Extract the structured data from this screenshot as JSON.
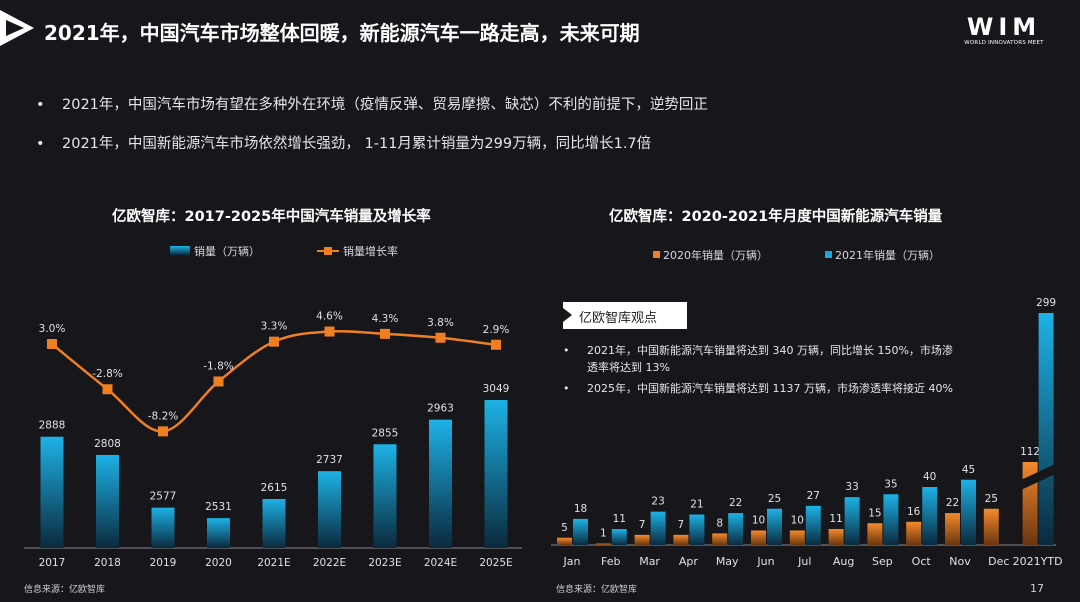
{
  "header": {
    "title": "2021年，中国汽车市场整体回暖，新能源汽车一路走高，未来可期",
    "brand_main": "WIM",
    "brand_sub": "WORLD INNOVATORS MEET"
  },
  "bullets": [
    "2021年，中国汽车市场有望在多种外在环境（疫情反弹、贸易摩擦、缺芯）不利的前提下，逆势回正",
    "2021年，中国新能源汽车市场依然增长强劲， 1-11月累计销量为299万辆，同比增长1.7倍"
  ],
  "chart_data": [
    {
      "type": "bar+line",
      "title": "亿欧智库：2017-2025年中国汽车销量及增长率",
      "categories": [
        "2017",
        "2018",
        "2019",
        "2020",
        "2021E",
        "2022E",
        "2023E",
        "2024E",
        "2025E"
      ],
      "series": [
        {
          "name": "销量（万辆）",
          "kind": "bar",
          "values": [
            2888,
            2808,
            2577,
            2531,
            2615,
            2737,
            2855,
            2963,
            3049
          ]
        },
        {
          "name": "销量增长率",
          "kind": "line",
          "values": [
            3.0,
            -2.8,
            -8.2,
            -1.8,
            3.3,
            4.6,
            4.3,
            3.8,
            2.9
          ],
          "labels": [
            "3.0%",
            "-2.8%",
            "-8.2%",
            "-1.8%",
            "3.3%",
            "4.6%",
            "4.3%",
            "3.8%",
            "2.9%"
          ]
        }
      ],
      "legend": "top",
      "colors": {
        "bar": "#1aa7db",
        "line": "#f07f22"
      }
    },
    {
      "type": "bar",
      "title": "亿欧智库：2020-2021年月度中国新能源汽车销量",
      "categories": [
        "Jan",
        "Feb",
        "Mar",
        "Apr",
        "May",
        "Jun",
        "Jul",
        "Aug",
        "Sep",
        "Oct",
        "Nov",
        "Dec",
        "2021YTD"
      ],
      "series": [
        {
          "name": "2020年销量（万辆）",
          "values": [
            5,
            1,
            7,
            7,
            8,
            10,
            10,
            11,
            15,
            16,
            22,
            25,
            112
          ]
        },
        {
          "name": "2021年销量（万辆）",
          "values": [
            18,
            11,
            23,
            21,
            22,
            25,
            27,
            33,
            35,
            40,
            45,
            null,
            299
          ]
        }
      ],
      "axis_break": "2021YTD",
      "legend": "top",
      "colors": {
        "s2020": "#f07f22",
        "s2021": "#1aa7db"
      }
    }
  ],
  "insight": {
    "label": "亿欧智库观点",
    "items": [
      "2021年，中国新能源汽车销量将达到 340 万辆，同比增长 150%，市场渗透率将达到 13%",
      "2025年，中国新能源汽车销量将达到 1137 万辆，市场渗透率将接近 40%"
    ]
  },
  "footer": {
    "source_left": "信息来源：亿欧智库",
    "source_right": "信息来源：亿欧智库",
    "page_number": "17"
  }
}
